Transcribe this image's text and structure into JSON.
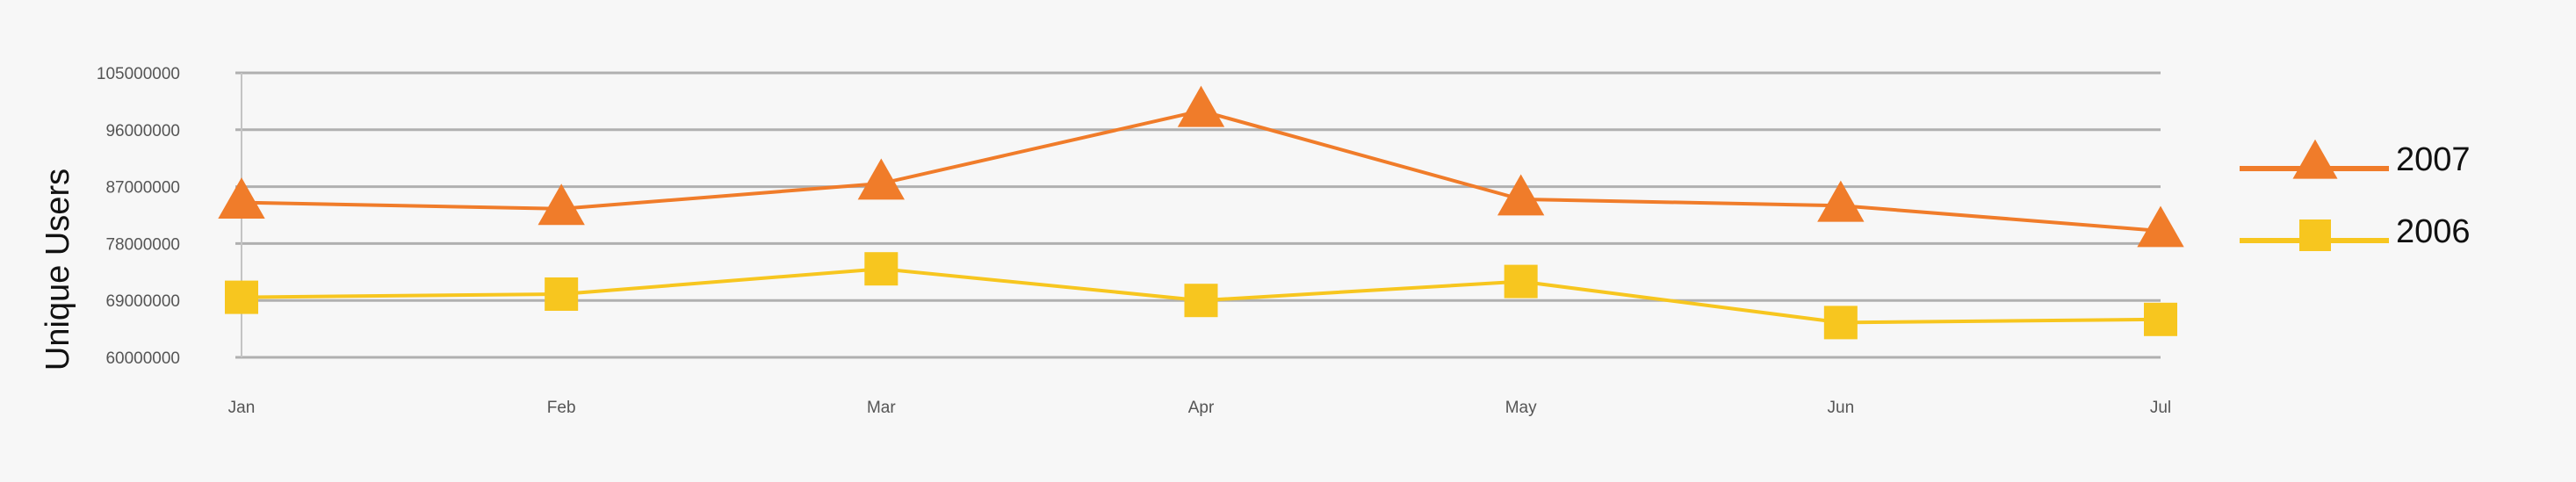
{
  "chart_data": {
    "type": "line",
    "title": "",
    "xlabel": "",
    "ylabel": "Unique Users",
    "categories": [
      "Jan",
      "Feb",
      "Mar",
      "Apr",
      "May",
      "Jun",
      "Jul"
    ],
    "y_ticks": [
      "105000000",
      "96000000",
      "87000000",
      "78000000",
      "69000000",
      "60000000"
    ],
    "y_tick_values": [
      105000000,
      96000000,
      87000000,
      78000000,
      69000000,
      60000000
    ],
    "ylim": [
      60000000,
      105000000
    ],
    "grid": true,
    "legend_placement": "right",
    "series": [
      {
        "name": "2007",
        "values": [
          84500000,
          83500000,
          87500000,
          99000000,
          85000000,
          84000000,
          80000000
        ],
        "color": "#f07c2a",
        "marker": "triangle"
      },
      {
        "name": "2006",
        "values": [
          69500000,
          70000000,
          74000000,
          69000000,
          72000000,
          65500000,
          66000000
        ],
        "color": "#f7c61f",
        "marker": "square"
      }
    ]
  }
}
